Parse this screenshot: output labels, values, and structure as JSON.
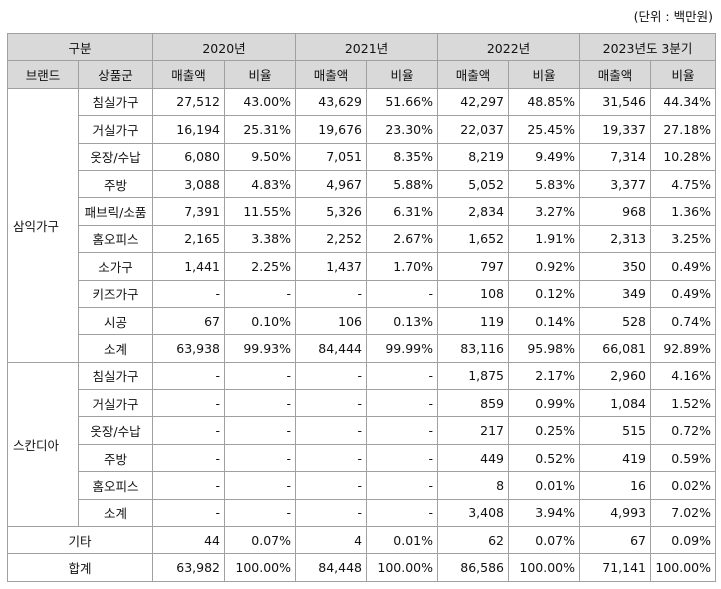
{
  "unit": "(단위 : 백만원)",
  "header": {
    "category": "구분",
    "periods": [
      "2020년",
      "2021년",
      "2022년",
      "2023년도 3분기"
    ],
    "brand": "브랜드",
    "product": "상품군",
    "sales": "매출액",
    "ratio": "비율"
  },
  "groups": [
    {
      "brand": "삼익가구",
      "rows": [
        [
          "침실가구",
          "27,512",
          "43.00%",
          "43,629",
          "51.66%",
          "42,297",
          "48.85%",
          "31,546",
          "44.34%"
        ],
        [
          "거실가구",
          "16,194",
          "25.31%",
          "19,676",
          "23.30%",
          "22,037",
          "25.45%",
          "19,337",
          "27.18%"
        ],
        [
          "옷장/수납",
          "6,080",
          "9.50%",
          "7,051",
          "8.35%",
          "8,219",
          "9.49%",
          "7,314",
          "10.28%"
        ],
        [
          "주방",
          "3,088",
          "4.83%",
          "4,967",
          "5.88%",
          "5,052",
          "5.83%",
          "3,377",
          "4.75%"
        ],
        [
          "패브릭/소품",
          "7,391",
          "11.55%",
          "5,326",
          "6.31%",
          "2,834",
          "3.27%",
          "968",
          "1.36%"
        ],
        [
          "홈오피스",
          "2,165",
          "3.38%",
          "2,252",
          "2.67%",
          "1,652",
          "1.91%",
          "2,313",
          "3.25%"
        ],
        [
          "소가구",
          "1,441",
          "2.25%",
          "1,437",
          "1.70%",
          "797",
          "0.92%",
          "350",
          "0.49%"
        ],
        [
          "키즈가구",
          "-",
          "-",
          "-",
          "-",
          "108",
          "0.12%",
          "349",
          "0.49%"
        ],
        [
          "시공",
          "67",
          "0.10%",
          "106",
          "0.13%",
          "119",
          "0.14%",
          "528",
          "0.74%"
        ],
        [
          "소계",
          "63,938",
          "99.93%",
          "84,444",
          "99.99%",
          "83,116",
          "95.98%",
          "66,081",
          "92.89%"
        ]
      ]
    },
    {
      "brand": "스칸디아",
      "rows": [
        [
          "침실가구",
          "-",
          "-",
          "-",
          "-",
          "1,875",
          "2.17%",
          "2,960",
          "4.16%"
        ],
        [
          "거실가구",
          "-",
          "-",
          "-",
          "-",
          "859",
          "0.99%",
          "1,084",
          "1.52%"
        ],
        [
          "옷장/수납",
          "-",
          "-",
          "-",
          "-",
          "217",
          "0.25%",
          "515",
          "0.72%"
        ],
        [
          "주방",
          "-",
          "-",
          "-",
          "-",
          "449",
          "0.52%",
          "419",
          "0.59%"
        ],
        [
          "홈오피스",
          "-",
          "-",
          "-",
          "-",
          "8",
          "0.01%",
          "16",
          "0.02%"
        ],
        [
          "소계",
          "-",
          "-",
          "-",
          "-",
          "3,408",
          "3.94%",
          "4,993",
          "7.02%"
        ]
      ]
    }
  ],
  "other": [
    "기타",
    "44",
    "0.07%",
    "4",
    "0.01%",
    "62",
    "0.07%",
    "67",
    "0.09%"
  ],
  "total": [
    "합계",
    "63,982",
    "100.00%",
    "84,448",
    "100.00%",
    "86,586",
    "100.00%",
    "71,141",
    "100.00%"
  ]
}
